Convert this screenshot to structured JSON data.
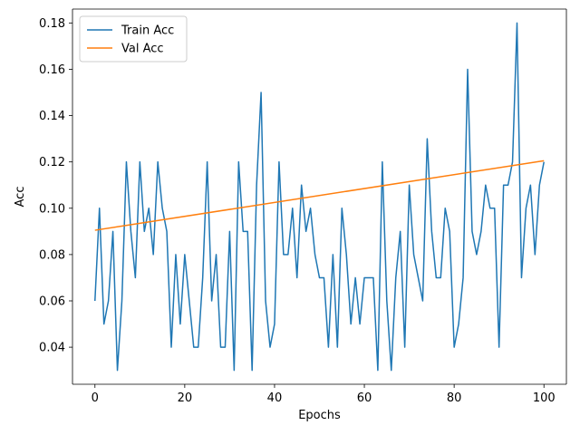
{
  "chart_data": {
    "type": "line",
    "title": "",
    "xlabel": "Epochs",
    "ylabel": "Acc",
    "xlim": [
      -5,
      105
    ],
    "ylim": [
      0.024,
      0.186
    ],
    "x_ticks": [
      0,
      20,
      40,
      60,
      80,
      100
    ],
    "y_ticks": [
      0.04,
      0.06,
      0.08,
      0.1,
      0.12,
      0.14,
      0.16,
      0.18
    ],
    "x_tick_labels": [
      "0",
      "20",
      "40",
      "60",
      "80",
      "100"
    ],
    "y_tick_labels": [
      "0.04",
      "0.06",
      "0.08",
      "0.10",
      "0.12",
      "0.14",
      "0.16",
      "0.18"
    ],
    "grid": false,
    "legend_position": "top-left",
    "series": [
      {
        "name": "Train Acc",
        "color": "#1f77b4",
        "x": [
          0,
          1,
          2,
          3,
          4,
          5,
          6,
          7,
          8,
          9,
          10,
          11,
          12,
          13,
          14,
          15,
          16,
          17,
          18,
          19,
          20,
          21,
          22,
          23,
          24,
          25,
          26,
          27,
          28,
          29,
          30,
          31,
          32,
          33,
          34,
          35,
          36,
          37,
          38,
          39,
          40,
          41,
          42,
          43,
          44,
          45,
          46,
          47,
          48,
          49,
          50,
          51,
          52,
          53,
          54,
          55,
          56,
          57,
          58,
          59,
          60,
          61,
          62,
          63,
          64,
          65,
          66,
          67,
          68,
          69,
          70,
          71,
          72,
          73,
          74,
          75,
          76,
          77,
          78,
          79,
          80,
          81,
          82,
          83,
          84,
          85,
          86,
          87,
          88,
          89,
          90,
          91,
          92,
          93,
          94,
          95,
          96,
          97,
          98,
          99,
          100
        ],
        "values": [
          0.06,
          0.1,
          0.05,
          0.06,
          0.09,
          0.03,
          0.06,
          0.12,
          0.09,
          0.07,
          0.12,
          0.09,
          0.1,
          0.08,
          0.12,
          0.1,
          0.09,
          0.04,
          0.08,
          0.05,
          0.08,
          0.06,
          0.04,
          0.04,
          0.07,
          0.12,
          0.06,
          0.08,
          0.04,
          0.04,
          0.09,
          0.03,
          0.12,
          0.09,
          0.09,
          0.03,
          0.11,
          0.15,
          0.06,
          0.04,
          0.05,
          0.12,
          0.08,
          0.08,
          0.1,
          0.07,
          0.11,
          0.09,
          0.1,
          0.08,
          0.07,
          0.07,
          0.04,
          0.08,
          0.04,
          0.1,
          0.08,
          0.05,
          0.07,
          0.05,
          0.07,
          0.07,
          0.07,
          0.03,
          0.12,
          0.06,
          0.03,
          0.07,
          0.09,
          0.04,
          0.11,
          0.08,
          0.07,
          0.06,
          0.13,
          0.09,
          0.07,
          0.07,
          0.1,
          0.09,
          0.04,
          0.05,
          0.07,
          0.16,
          0.09,
          0.08,
          0.09,
          0.11,
          0.1,
          0.1,
          0.04,
          0.11,
          0.11,
          0.12,
          0.18,
          0.07,
          0.1,
          0.11,
          0.08,
          0.11,
          0.12
        ]
      },
      {
        "name": "Val Acc",
        "color": "#ff7f0e",
        "x": [
          0,
          100
        ],
        "values": [
          0.0905,
          0.1205
        ]
      }
    ]
  }
}
